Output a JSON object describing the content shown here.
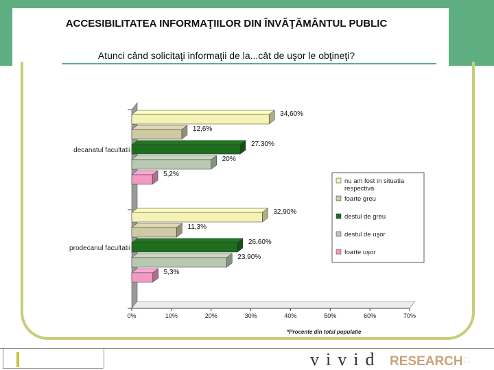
{
  "header": {
    "title": "ACCESIBILITATEA INFORMAŢIILOR DIN ÎNVĂŢĂMÂNTUL PUBLIC",
    "subtitle": "Atunci când solicitaţi informaţii de la...cât de uşor le obţineţi?"
  },
  "footer": {
    "logo_word": "vivid",
    "logo_research": "RESEARCH",
    "logo_dots": "::"
  },
  "colors": {
    "accent": "#5fae82",
    "frame": "#c9cc7a"
  },
  "chart_data": {
    "type": "bar",
    "orientation": "horizontal",
    "style": "3d",
    "categories": [
      "decanatul facultatii",
      "prodecanul facultatii"
    ],
    "series": [
      {
        "name": "nu am fost in situatia respectiva",
        "color": "#f4f2b4",
        "values": [
          34.6,
          32.9
        ],
        "labels": [
          "34,60%",
          "32,90%"
        ]
      },
      {
        "name": "foarte greu",
        "color": "#cfcaa4",
        "values": [
          12.6,
          11.3
        ],
        "labels": [
          "12,6%",
          "11,3%"
        ]
      },
      {
        "name": "destul de greu",
        "color": "#1f6e1f",
        "values": [
          27.3,
          26.6
        ],
        "labels": [
          "27.30%",
          "26,60%"
        ]
      },
      {
        "name": "destul de uşor",
        "color": "#b9c8b1",
        "values": [
          20,
          23.9
        ],
        "labels": [
          "20%",
          "23,90%"
        ]
      },
      {
        "name": "foarte uşor",
        "color": "#f19ac4",
        "values": [
          5.2,
          5.3
        ],
        "labels": [
          "5,2%",
          "5,3%"
        ]
      }
    ],
    "xlim": [
      0,
      70
    ],
    "xticks": [
      "0%",
      "10%",
      "20%",
      "30%",
      "40%",
      "50%",
      "60%",
      "70%"
    ],
    "legend_position": "right",
    "footnote": "*Procente din total populatie"
  }
}
